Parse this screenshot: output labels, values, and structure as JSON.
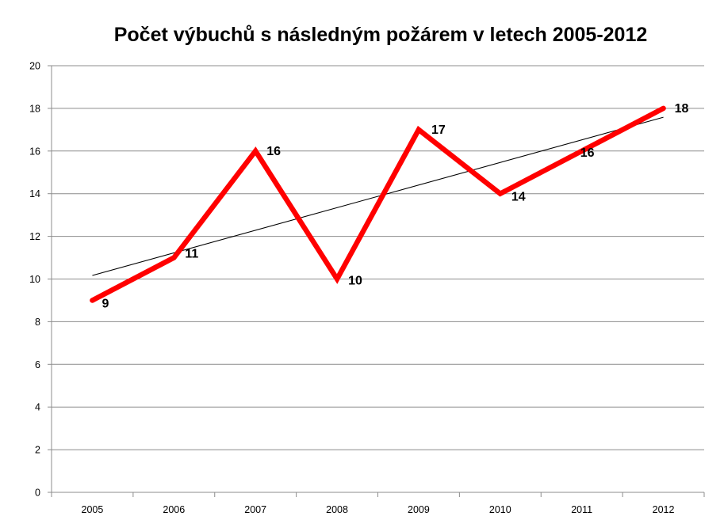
{
  "chart_data": {
    "type": "line",
    "title": "Počet výbuchů s následným požárem  v letech 2005-2012",
    "categories": [
      "2005",
      "2006",
      "2007",
      "2008",
      "2009",
      "2010",
      "2011",
      "2012"
    ],
    "series": [
      {
        "values": [
          9,
          11,
          16,
          10,
          17,
          14,
          16,
          18
        ],
        "color": "#ff0000",
        "data_labels": true
      }
    ],
    "trendline": {
      "type": "linear",
      "color": "#000000"
    },
    "ylim": [
      0,
      20
    ],
    "yticks": [
      0,
      2,
      4,
      6,
      8,
      10,
      12,
      14,
      16,
      18,
      20
    ],
    "grid": "horizontal",
    "legend": "none"
  }
}
